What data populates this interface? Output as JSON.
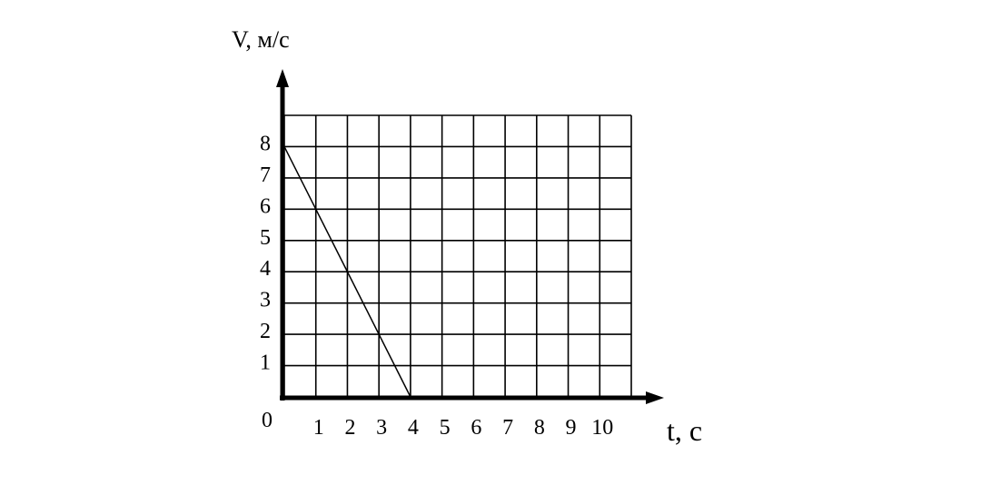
{
  "chart_data": {
    "type": "line",
    "title": "",
    "xlabel": "t, с",
    "ylabel": "V, м/с",
    "xlim": [
      0,
      11
    ],
    "ylim": [
      0,
      9
    ],
    "x_ticks": [
      "1",
      "2",
      "3",
      "4",
      "5",
      "6",
      "7",
      "8",
      "9",
      "10"
    ],
    "y_ticks": [
      "1",
      "2",
      "3",
      "4",
      "5",
      "6",
      "7",
      "8"
    ],
    "origin_label": "0",
    "grid": true,
    "series": [
      {
        "x": [
          0,
          4
        ],
        "y": [
          8,
          0
        ],
        "color": "#000000"
      }
    ]
  }
}
